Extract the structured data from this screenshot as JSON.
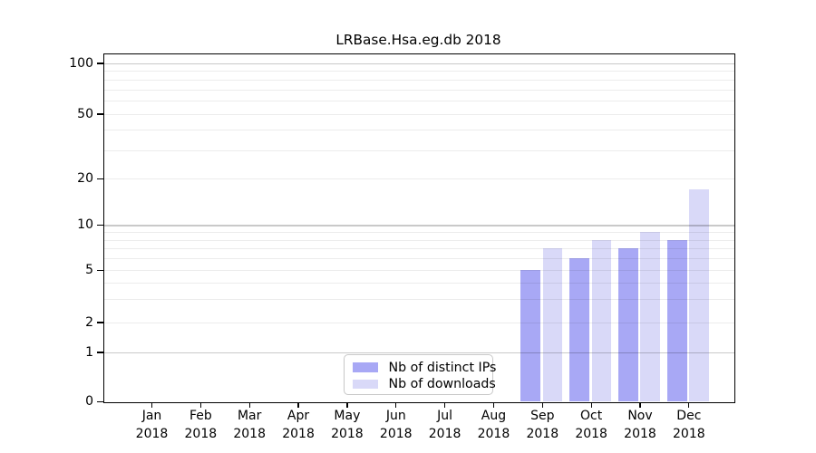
{
  "chart_data": {
    "type": "bar",
    "title": "LRBase.Hsa.eg.db 2018",
    "categories": [
      "Jan",
      "Feb",
      "Mar",
      "Apr",
      "May",
      "Jun",
      "Jul",
      "Aug",
      "Sep",
      "Oct",
      "Nov",
      "Dec"
    ],
    "year_label": "2018",
    "series": [
      {
        "name": "Nb of distinct IPs",
        "color": "#a8a8f5",
        "values": [
          null,
          null,
          null,
          null,
          null,
          null,
          null,
          null,
          5,
          6,
          7,
          8
        ]
      },
      {
        "name": "Nb of downloads",
        "color": "#d9d9f8",
        "values": [
          null,
          null,
          null,
          null,
          null,
          null,
          null,
          null,
          7,
          8,
          9,
          17
        ]
      }
    ],
    "xlabel": "",
    "ylabel": "",
    "yticks": [
      0,
      1,
      2,
      5,
      10,
      20,
      50,
      100
    ],
    "ylim": [
      0,
      115
    ],
    "yscale": "log-like (0,1,2,5,10,20,50,100)",
    "grid": "horizontal, major lines at 1/10/100, minor lines at 2-9,20-90",
    "legend_position": "lower center"
  },
  "colors": {
    "background": "#ffffff",
    "bar_distinct_ips": "#a8a8f5",
    "bar_downloads": "#d9d9f8",
    "major_grid": "#c9c9c9",
    "minor_grid": "#ececec",
    "spine": "#000000",
    "legend_border": "#c8c8c8"
  }
}
